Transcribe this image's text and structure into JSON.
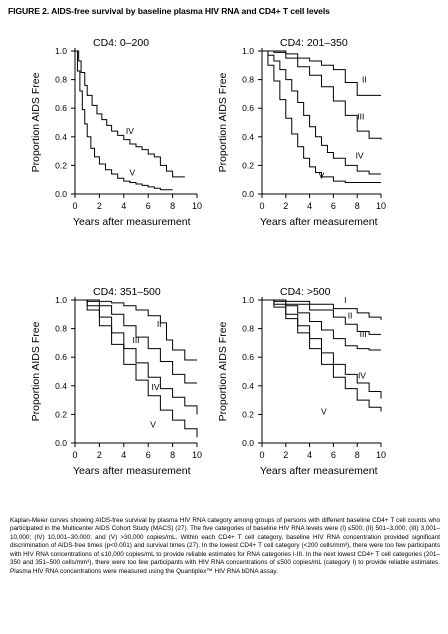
{
  "figure": {
    "title": "FIGURE 2. AIDS-free survival by baseline plasma HIV RNA and CD4+ T cell levels",
    "caption": "Kaplan-Meier curves showing AIDS-free survival by plasma HIV RNA category among groups of persons with different baseline CD4+ T cell counts who participated in the Multicenter AIDS Cohort Study (MACS) (27). The five categories of baseline HIV RNA levels were (I) ≤500; (II) 501–3,000; (III) 3,001–10,000; (IV) 10,001–30,000; and (V) >30,000 copies/mL. Within each CD4+ T cell category, baseline HIV RNA concentration provided significant discrimination of AIDS-free times (p<0.001) and survival times (27). In the lowest CD4+ T cell category (<200 cells/mm³), there were too few participants with HIV RNA concentrations of ≤10,000 copies/mL to provide reliable estimates for RNA categories I-III. In the next lowest CD4+ T cell categories (201–350 and 351–500 cells/mm³), there were too few participants with HIV RNA concentrations of ≤500 copies/mL (category I) to provide reliable estimates. Plasma HIV RNA concentrations were measured using the Quantiplex™ HIV RNA bDNA assay."
  },
  "chart_data": [
    {
      "type": "line",
      "title": "CD4: 0–200",
      "xlabel": "Years after measurement",
      "ylabel": "Proportion AIDS Free",
      "xlim": [
        0,
        10
      ],
      "ylim": [
        0,
        1.0
      ],
      "xticks": [
        "0",
        "2",
        "4",
        "6",
        "8",
        "10"
      ],
      "yticks": [
        "0.0",
        "0.2",
        "0.4",
        "0.6",
        "0.8",
        "1.0"
      ],
      "series": [
        {
          "name": "IV",
          "x": [
            0,
            0.3,
            0.5,
            0.8,
            1.0,
            1.4,
            1.8,
            2.2,
            2.6,
            3.0,
            3.5,
            4.0,
            4.5,
            5.0,
            5.5,
            6.0,
            6.5,
            7.0,
            7.5,
            8.0,
            9.0
          ],
          "y": [
            1.0,
            0.93,
            0.85,
            0.76,
            0.69,
            0.62,
            0.56,
            0.52,
            0.48,
            0.44,
            0.41,
            0.38,
            0.35,
            0.33,
            0.31,
            0.28,
            0.26,
            0.2,
            0.16,
            0.12,
            0.12
          ]
        },
        {
          "name": "V",
          "x": [
            0,
            0.2,
            0.4,
            0.6,
            0.8,
            1.0,
            1.3,
            1.6,
            2.0,
            2.5,
            3.0,
            3.5,
            4.0,
            4.5,
            5.0,
            5.5,
            6.0,
            6.5,
            7.0,
            8.0
          ],
          "y": [
            1.0,
            0.86,
            0.72,
            0.59,
            0.49,
            0.4,
            0.32,
            0.26,
            0.21,
            0.17,
            0.14,
            0.11,
            0.09,
            0.08,
            0.07,
            0.06,
            0.05,
            0.04,
            0.03,
            0.03
          ]
        }
      ]
    },
    {
      "type": "line",
      "title": "CD4: 201–350",
      "xlabel": "Years after measurement",
      "ylabel": "Proportion AIDS Free",
      "xlim": [
        0,
        10
      ],
      "ylim": [
        0,
        1.0
      ],
      "xticks": [
        "0",
        "2",
        "4",
        "6",
        "8",
        "10"
      ],
      "yticks": [
        "0.0",
        "0.2",
        "0.4",
        "0.6",
        "0.8",
        "1.0"
      ],
      "series": [
        {
          "name": "II",
          "x": [
            0,
            2.0,
            3.0,
            4.0,
            5.0,
            6.0,
            7.0,
            8.0,
            10.0
          ],
          "y": [
            1.0,
            0.98,
            0.95,
            0.93,
            0.9,
            0.87,
            0.78,
            0.69,
            0.69
          ]
        },
        {
          "name": "III",
          "x": [
            0,
            1.0,
            2.0,
            3.0,
            4.0,
            5.0,
            6.0,
            7.0,
            8.0,
            9.0,
            10.0
          ],
          "y": [
            1.0,
            0.99,
            0.95,
            0.89,
            0.83,
            0.75,
            0.65,
            0.55,
            0.44,
            0.39,
            0.38
          ]
        },
        {
          "name": "IV",
          "x": [
            0,
            0.5,
            1.0,
            1.5,
            2.0,
            2.5,
            3.0,
            3.5,
            4.0,
            4.5,
            5.0,
            5.5,
            6.0,
            7.0,
            8.0,
            9.0,
            10.0
          ],
          "y": [
            1.0,
            0.97,
            0.93,
            0.87,
            0.8,
            0.72,
            0.64,
            0.55,
            0.47,
            0.4,
            0.34,
            0.29,
            0.25,
            0.2,
            0.16,
            0.14,
            0.14
          ]
        },
        {
          "name": "V",
          "x": [
            0,
            0.5,
            1.0,
            1.5,
            2.0,
            2.5,
            3.0,
            3.5,
            4.0,
            4.5,
            5.0,
            6.0,
            7.0,
            8.0,
            10.0
          ],
          "y": [
            1.0,
            0.9,
            0.79,
            0.66,
            0.53,
            0.42,
            0.33,
            0.25,
            0.19,
            0.15,
            0.12,
            0.09,
            0.08,
            0.08,
            0.08
          ]
        }
      ]
    },
    {
      "type": "line",
      "title": "CD4: 351–500",
      "xlabel": "Years after measurement",
      "ylabel": "Proportion AIDS Free",
      "xlim": [
        0,
        10
      ],
      "ylim": [
        0,
        1.0
      ],
      "xticks": [
        "0",
        "2",
        "4",
        "6",
        "8",
        "10"
      ],
      "yticks": [
        "0.0",
        "0.2",
        "0.4",
        "0.6",
        "0.8",
        "1.0"
      ],
      "series": [
        {
          "name": "II",
          "x": [
            0,
            1.0,
            2.0,
            3.0,
            4.0,
            5.0,
            6.0,
            7.0,
            7.5,
            8.0,
            9.0,
            10.0
          ],
          "y": [
            1.0,
            1.0,
            0.99,
            0.98,
            0.96,
            0.93,
            0.89,
            0.84,
            0.72,
            0.65,
            0.58,
            0.58
          ]
        },
        {
          "name": "III",
          "x": [
            0,
            1.0,
            2.0,
            3.0,
            4.0,
            5.0,
            6.0,
            7.0,
            8.0,
            9.0,
            10.0
          ],
          "y": [
            1.0,
            0.99,
            0.96,
            0.9,
            0.82,
            0.74,
            0.66,
            0.57,
            0.48,
            0.42,
            0.42
          ]
        },
        {
          "name": "IV",
          "x": [
            0,
            1.0,
            2.0,
            3.0,
            4.0,
            5.0,
            6.0,
            7.0,
            8.0,
            9.0,
            10.0
          ],
          "y": [
            1.0,
            0.96,
            0.88,
            0.77,
            0.66,
            0.56,
            0.46,
            0.38,
            0.32,
            0.26,
            0.2
          ]
        },
        {
          "name": "V",
          "x": [
            0,
            1.0,
            2.0,
            3.0,
            4.0,
            5.0,
            6.0,
            7.0,
            8.0,
            9.0,
            10.0
          ],
          "y": [
            1.0,
            0.93,
            0.82,
            0.69,
            0.55,
            0.44,
            0.33,
            0.23,
            0.16,
            0.1,
            0.04
          ]
        }
      ]
    },
    {
      "type": "line",
      "title": "CD4: >500",
      "xlabel": "Years after measurement",
      "ylabel": "Proportion AIDS Free",
      "xlim": [
        0,
        10
      ],
      "ylim": [
        0,
        1.0
      ],
      "xticks": [
        "0",
        "2",
        "4",
        "6",
        "8",
        "10"
      ],
      "yticks": [
        "0.0",
        "0.2",
        "0.4",
        "0.6",
        "0.8",
        "1.0"
      ],
      "series": [
        {
          "name": "I",
          "x": [
            0,
            2.0,
            4.0,
            6.0,
            8.0,
            9.0,
            10.0
          ],
          "y": [
            1.0,
            0.99,
            0.97,
            0.94,
            0.91,
            0.88,
            0.86
          ]
        },
        {
          "name": "II",
          "x": [
            0,
            2.0,
            4.0,
            6.0,
            7.0,
            8.0,
            9.0,
            10.0
          ],
          "y": [
            1.0,
            0.97,
            0.93,
            0.88,
            0.83,
            0.78,
            0.76,
            0.76
          ]
        },
        {
          "name": "III",
          "x": [
            0,
            1.0,
            2.0,
            3.0,
            4.0,
            5.0,
            6.0,
            7.0,
            8.0,
            9.0,
            10.0
          ],
          "y": [
            1.0,
            0.99,
            0.96,
            0.91,
            0.85,
            0.79,
            0.73,
            0.68,
            0.66,
            0.65,
            0.65
          ]
        },
        {
          "name": "IV",
          "x": [
            0,
            1.0,
            2.0,
            3.0,
            4.0,
            5.0,
            6.0,
            7.0,
            8.0,
            9.0,
            10.0
          ],
          "y": [
            1.0,
            0.97,
            0.9,
            0.82,
            0.73,
            0.63,
            0.55,
            0.48,
            0.42,
            0.36,
            0.31
          ]
        },
        {
          "name": "V",
          "x": [
            0,
            1.0,
            2.0,
            3.0,
            4.0,
            5.0,
            6.0,
            7.0,
            8.0,
            9.0,
            10.0
          ],
          "y": [
            1.0,
            0.95,
            0.87,
            0.77,
            0.66,
            0.55,
            0.46,
            0.38,
            0.3,
            0.25,
            0.22
          ]
        }
      ]
    }
  ]
}
